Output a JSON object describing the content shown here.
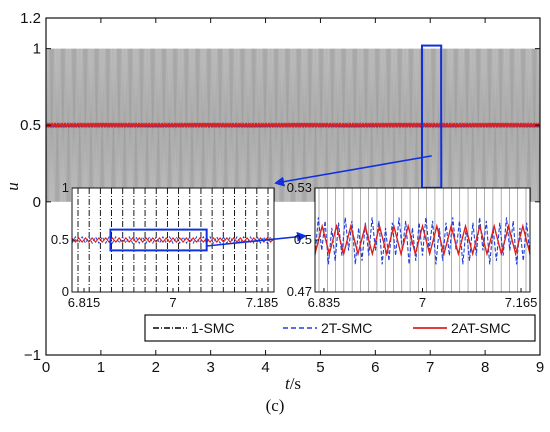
{
  "chart_data": {
    "type": "line",
    "main": {
      "xlabel_var": "t",
      "xlabel_unit": "/s",
      "ylabel": "u",
      "xlim": [
        0,
        9
      ],
      "ylim": [
        -1,
        1.2
      ],
      "xticks": [
        0,
        1,
        2,
        3,
        4,
        5,
        6,
        7,
        8,
        9
      ],
      "yticks": [
        -1,
        0,
        0.5,
        1,
        1.2
      ],
      "ytick_labels": [
        "−1",
        "0",
        "0.5",
        "1",
        "1.2"
      ],
      "series": [
        {
          "name": "1-SMC",
          "color": "#000000",
          "style": "dash-dot",
          "behavior": "switching between 0 and 1"
        },
        {
          "name": "2T-SMC",
          "color": "#1f3fd6",
          "style": "dashed",
          "approx_value": 0.5
        },
        {
          "name": "2AT-SMC",
          "color": "#e0201b",
          "style": "solid",
          "approx_value": 0.5
        }
      ],
      "legend_placement": "bottom-right",
      "zoom_box_x": [
        6.85,
        7.2
      ],
      "zoom_box_y": [
        0,
        1.02
      ]
    },
    "inset1": {
      "xlim": [
        6.79,
        7.21
      ],
      "ylim": [
        0,
        1
      ],
      "xticks": [
        6.815,
        7,
        7.185
      ],
      "xtick_labels": [
        "6.815",
        "7",
        "7.185"
      ],
      "yticks": [
        0,
        0.5,
        1
      ],
      "ytick_labels": [
        "0",
        "0.5",
        "1"
      ],
      "zoom_box_x": [
        6.87,
        7.07
      ],
      "zoom_box_y": [
        0.4,
        0.6
      ]
    },
    "inset2": {
      "xlim": [
        6.82,
        7.18
      ],
      "ylim": [
        0.47,
        0.53
      ],
      "xticks": [
        6.835,
        7,
        7.165
      ],
      "xtick_labels": [
        "6.835",
        "7",
        "7.165"
      ],
      "yticks": [
        0.47,
        0.5,
        0.53
      ],
      "ytick_labels": [
        "0.47",
        "0.5",
        "0.53"
      ]
    },
    "legend": {
      "entries": [
        "1-SMC",
        "2T-SMC",
        "2AT-SMC"
      ]
    },
    "caption": "(c)"
  }
}
